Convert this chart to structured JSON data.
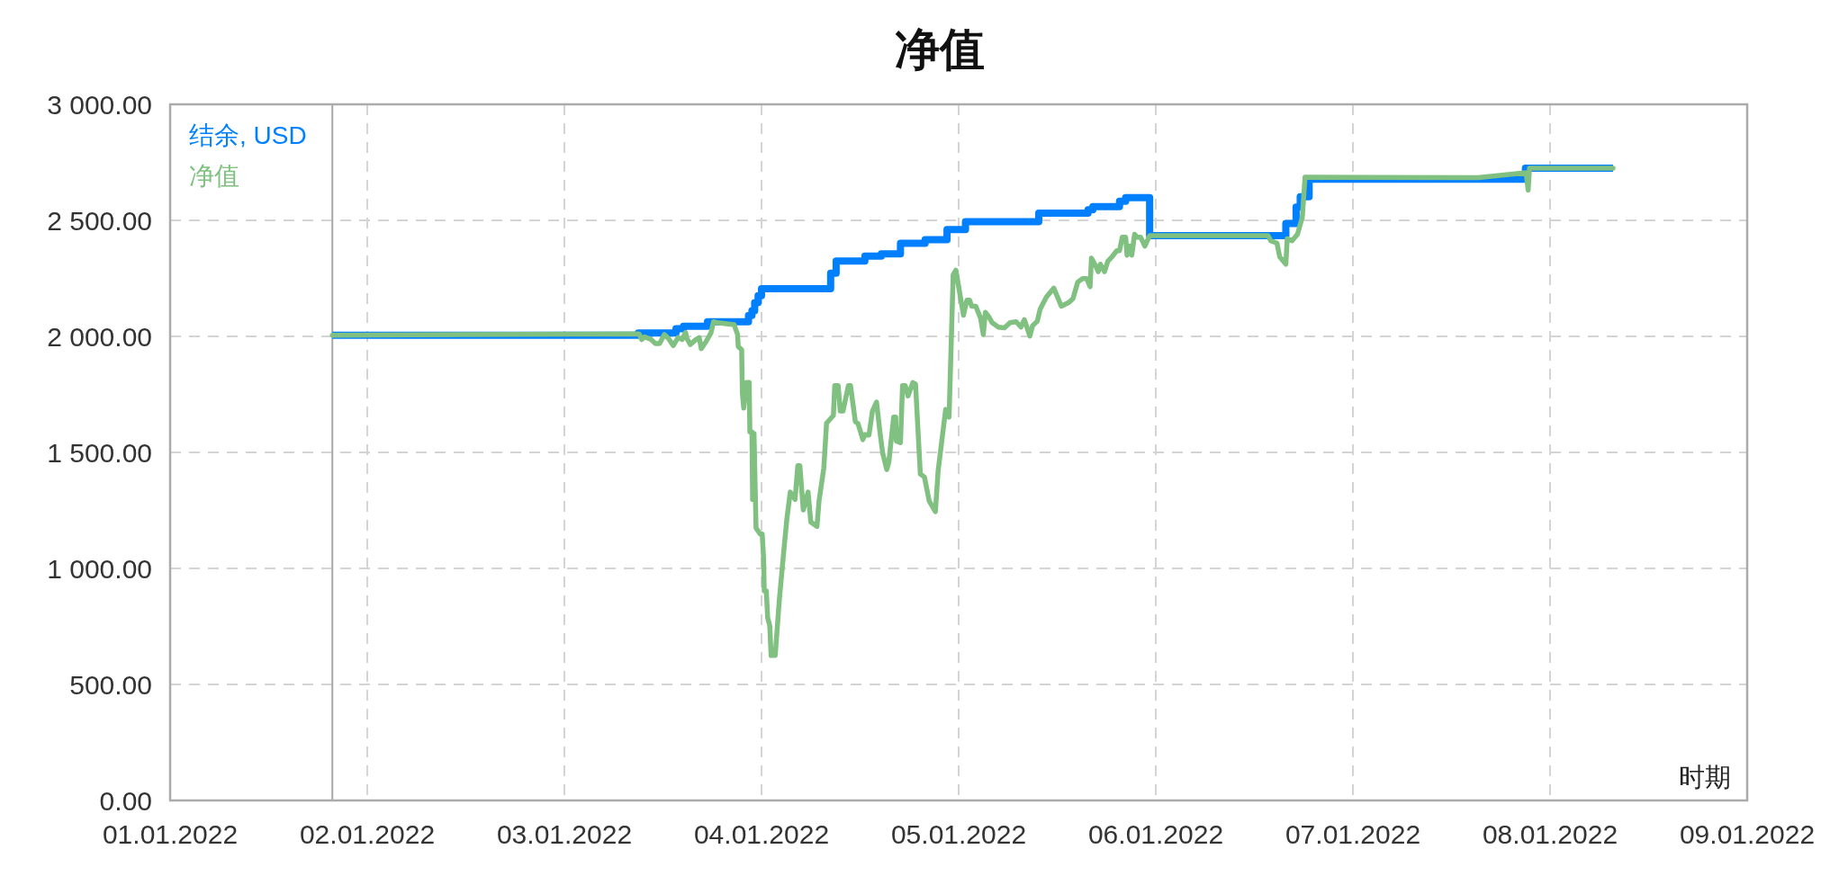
{
  "chart_data": {
    "type": "line",
    "title": "净值",
    "xlabel": "时期",
    "legend": "top left",
    "grid": true,
    "xlim": [
      "2022-01-01",
      "2022-01-09"
    ],
    "xticks": [
      {
        "value": "2022-01-01",
        "label": "01.01.2022"
      },
      {
        "value": "2022-01-02",
        "label": "02.01.2022"
      },
      {
        "value": "2022-01-03",
        "label": "03.01.2022"
      },
      {
        "value": "2022-01-04",
        "label": "04.01.2022"
      },
      {
        "value": "2022-01-05",
        "label": "05.01.2022"
      },
      {
        "value": "2022-01-06",
        "label": "06.01.2022"
      },
      {
        "value": "2022-01-07",
        "label": "07.01.2022"
      },
      {
        "value": "2022-01-08",
        "label": "08.01.2022"
      },
      {
        "value": "2022-01-09",
        "label": "09.01.2022"
      }
    ],
    "ylim": [
      0,
      3000
    ],
    "yticks": [
      {
        "value": 0,
        "label": "0.00"
      },
      {
        "value": 500,
        "label": "500.00"
      },
      {
        "value": 1000,
        "label": "1 000.00"
      },
      {
        "value": 1500,
        "label": "1 500.00"
      },
      {
        "value": 2000,
        "label": "2 000.00"
      },
      {
        "value": 2500,
        "label": "2 500.00"
      },
      {
        "value": 3000,
        "label": "3 000.00"
      }
    ],
    "ref_lines": [
      {
        "axis": "x",
        "value": "2022-01-01T19:45",
        "color": "#a8a8a8"
      }
    ],
    "series": [
      {
        "name": "结余, USD",
        "type": "step",
        "color": "#0080ff",
        "x": [
          "2022-01-01T19:45",
          "2022-01-03T09:00",
          "2022-01-03T13:35",
          "2022-01-03T14:30",
          "2022-01-03T17:25",
          "2022-01-03T22:25",
          "2022-01-03T22:50",
          "2022-01-03T23:10",
          "2022-01-03T23:35",
          "2022-01-04T00:00",
          "2022-01-04T08:25",
          "2022-01-04T09:05",
          "2022-01-04T12:35",
          "2022-01-04T14:35",
          "2022-01-04T16:55",
          "2022-01-04T19:55",
          "2022-01-04T22:35",
          "2022-01-05T00:50",
          "2022-01-05T09:45",
          "2022-01-05T15:45",
          "2022-01-05T16:20",
          "2022-01-05T19:35",
          "2022-01-05T20:20",
          "2022-01-05T23:15",
          "2022-01-06T15:50",
          "2022-01-06T17:05",
          "2022-01-06T17:35",
          "2022-01-06T18:40",
          "2022-01-07T21:00",
          "2022-01-08T07:40"
        ],
        "values": [
          2005,
          2015,
          2033,
          2044,
          2063,
          2090,
          2110,
          2145,
          2175,
          2205,
          2272,
          2325,
          2346,
          2356,
          2401,
          2417,
          2460,
          2494,
          2531,
          2546,
          2559,
          2582,
          2598,
          2434,
          2486,
          2557,
          2602,
          2677,
          2725,
          2725
        ]
      },
      {
        "name": "净值",
        "color": "#80c080",
        "x": [
          "2022-01-01T19:45",
          "2022-01-03T09:05",
          "2022-01-03T09:25",
          "2022-01-03T09:45",
          "2022-01-03T10:30",
          "2022-01-03T11:05",
          "2022-01-03T11:35",
          "2022-01-03T12:10",
          "2022-01-03T12:40",
          "2022-01-03T13:15",
          "2022-01-03T13:50",
          "2022-01-03T14:20",
          "2022-01-03T14:45",
          "2022-01-03T14:55",
          "2022-01-03T15:20",
          "2022-01-03T16:00",
          "2022-01-03T16:25",
          "2022-01-03T16:40",
          "2022-01-03T17:15",
          "2022-01-03T17:50",
          "2022-01-03T18:10",
          "2022-01-03T18:35",
          "2022-01-03T20:40",
          "2022-01-03T21:05",
          "2022-01-03T21:10",
          "2022-01-03T21:35",
          "2022-01-03T21:40",
          "2022-01-03T21:50",
          "2022-01-03T22:10",
          "2022-01-03T22:30",
          "2022-01-03T22:35",
          "2022-01-03T22:50",
          "2022-01-03T22:55",
          "2022-01-03T23:05",
          "2022-01-03T23:20",
          "2022-01-03T23:50",
          "2022-01-04T00:05",
          "2022-01-04T00:15",
          "2022-01-04T00:20",
          "2022-01-04T00:35",
          "2022-01-04T00:45",
          "2022-01-04T01:00",
          "2022-01-04T01:10",
          "2022-01-04T01:40",
          "2022-01-04T02:10",
          "2022-01-04T02:40",
          "2022-01-04T03:05",
          "2022-01-04T03:30",
          "2022-01-04T04:05",
          "2022-01-04T04:25",
          "2022-01-04T04:40",
          "2022-01-04T05:05",
          "2022-01-04T05:40",
          "2022-01-04T06:00",
          "2022-01-04T06:45",
          "2022-01-04T07:00",
          "2022-01-04T07:35",
          "2022-01-04T07:55",
          "2022-01-04T08:45",
          "2022-01-04T08:55",
          "2022-01-04T09:20",
          "2022-01-04T09:35",
          "2022-01-04T09:55",
          "2022-01-04T10:35",
          "2022-01-04T10:50",
          "2022-01-04T11:25",
          "2022-01-04T11:45",
          "2022-01-04T12:20",
          "2022-01-04T12:35",
          "2022-01-04T13:05",
          "2022-01-04T13:30",
          "2022-01-04T14:00",
          "2022-01-04T14:25",
          "2022-01-04T14:45",
          "2022-01-04T15:15",
          "2022-01-04T15:30",
          "2022-01-04T16:05",
          "2022-01-04T16:20",
          "2022-01-04T16:25",
          "2022-01-04T16:55",
          "2022-01-04T17:10",
          "2022-01-04T17:30",
          "2022-01-04T17:50",
          "2022-01-04T18:25",
          "2022-01-04T18:45",
          "2022-01-04T19:20",
          "2022-01-04T19:50",
          "2022-01-04T20:25",
          "2022-01-04T21:10",
          "2022-01-04T21:30",
          "2022-01-04T22:25",
          "2022-01-04T22:50",
          "2022-01-04T23:20",
          "2022-01-04T23:40",
          "2022-01-05T00:35",
          "2022-01-05T01:00",
          "2022-01-05T01:20",
          "2022-01-05T01:35",
          "2022-01-05T02:05",
          "2022-01-05T02:40",
          "2022-01-05T03:00",
          "2022-01-05T03:15",
          "2022-01-05T03:40",
          "2022-01-05T04:05",
          "2022-01-05T04:50",
          "2022-01-05T05:35",
          "2022-01-05T06:15",
          "2022-01-05T07:00",
          "2022-01-05T07:35",
          "2022-01-05T08:00",
          "2022-01-05T08:40",
          "2022-01-05T09:00",
          "2022-01-05T09:35",
          "2022-01-05T09:55",
          "2022-01-05T10:40",
          "2022-01-05T11:35",
          "2022-01-05T12:30",
          "2022-01-05T13:25",
          "2022-01-05T13:55",
          "2022-01-05T14:30",
          "2022-01-05T15:05",
          "2022-01-05T15:35",
          "2022-01-05T16:00",
          "2022-01-05T16:10",
          "2022-01-05T16:40",
          "2022-01-05T17:00",
          "2022-01-05T17:15",
          "2022-01-05T17:45",
          "2022-01-05T18:10",
          "2022-01-05T18:40",
          "2022-01-05T19:15",
          "2022-01-05T19:35",
          "2022-01-05T19:55",
          "2022-01-05T20:20",
          "2022-01-05T20:30",
          "2022-01-05T20:50",
          "2022-01-05T21:05",
          "2022-01-05T21:25",
          "2022-01-05T21:45",
          "2022-01-05T22:10",
          "2022-01-05T22:40",
          "2022-01-05T23:15",
          "2022-01-06T13:40",
          "2022-01-06T14:00",
          "2022-01-06T14:45",
          "2022-01-06T15:05",
          "2022-01-06T15:50",
          "2022-01-06T16:00",
          "2022-01-06T16:35",
          "2022-01-06T17:15",
          "2022-01-06T17:40",
          "2022-01-06T17:50",
          "2022-01-06T18:10",
          "2022-01-07T15:15",
          "2022-01-07T21:05",
          "2022-01-07T21:20",
          "2022-01-07T21:30",
          "2022-01-08T07:40"
        ],
        "values": [
          2005,
          2011,
          1986,
          1998,
          1988,
          1969,
          1969,
          2008,
          1991,
          1960,
          1995,
          1986,
          2017,
          1991,
          1965,
          1986,
          1995,
          1947,
          1978,
          2014,
          2063,
          2059,
          2050,
          2008,
          1956,
          1943,
          1756,
          1691,
          1801,
          1801,
          1588,
          1588,
          1297,
          1581,
          1174,
          1148,
          1148,
          1045,
          903,
          903,
          787,
          754,
          625,
          625,
          864,
          1058,
          1213,
          1329,
          1297,
          1443,
          1443,
          1252,
          1329,
          1200,
          1181,
          1290,
          1433,
          1626,
          1659,
          1788,
          1788,
          1678,
          1678,
          1788,
          1788,
          1633,
          1624,
          1555,
          1577,
          1575,
          1678,
          1717,
          1588,
          1497,
          1426,
          1458,
          1652,
          1652,
          1549,
          1542,
          1788,
          1788,
          1743,
          1801,
          1794,
          1407,
          1394,
          1290,
          1245,
          1420,
          1685,
          1652,
          2266,
          2285,
          2091,
          2156,
          2156,
          2130,
          2130,
          2079,
          2008,
          2104,
          2085,
          2059,
          2040,
          2037,
          2059,
          2063,
          2040,
          2072,
          2001,
          2046,
          2066,
          2117,
          2169,
          2208,
          2130,
          2146,
          2163,
          2234,
          2249,
          2249,
          2214,
          2337,
          2305,
          2279,
          2311,
          2279,
          2324,
          2343,
          2369,
          2369,
          2427,
          2427,
          2350,
          2389,
          2350,
          2440,
          2427,
          2427,
          2389,
          2434,
          2434,
          2412,
          2402,
          2343,
          2311,
          2421,
          2412,
          2440,
          2492,
          2511,
          2686,
          2684,
          2705,
          2630,
          2725,
          2725
        ]
      }
    ]
  }
}
